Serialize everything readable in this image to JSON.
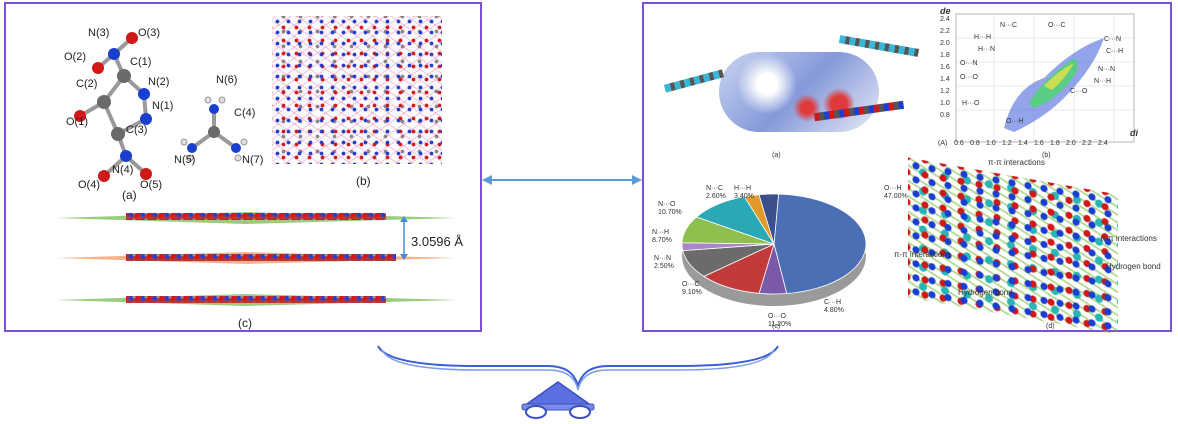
{
  "left": {
    "atoms_a": [
      "N(3)",
      "O(3)",
      "O(2)",
      "C(1)",
      "N(2)",
      "C(2)",
      "N(1)",
      "O(1)",
      "C(3)",
      "N(4)",
      "O(4)",
      "O(5)"
    ],
    "atoms_cation": [
      "N(6)",
      "C(4)",
      "N(5)",
      "N(7)"
    ],
    "label_a": "(a)",
    "label_b": "(b)",
    "label_c": "(c)",
    "spacing": "3.0596 Å"
  },
  "right": {
    "label_a": "(a)",
    "label_b": "(b)",
    "label_c": "(c)",
    "label_d": "(d)",
    "fingerprint": {
      "axis_de": "de",
      "axis_di": "di",
      "unit": "(A)",
      "y_ticks": [
        "2.4",
        "2.2",
        "2.0",
        "1.8",
        "1.6",
        "1.4",
        "1.2",
        "1.0",
        "0.8"
      ],
      "x_ticks": [
        "0.6",
        "0.8",
        "1.0",
        "1.2",
        "1.4",
        "1.6",
        "1.8",
        "2.0",
        "2.2",
        "2.4"
      ],
      "contacts": [
        "N···C",
        "O···C",
        "H···H",
        "C···N",
        "H···N",
        "C···H",
        "O···N",
        "N···N",
        "O···O",
        "N···H",
        "C···O",
        "H···O",
        "O···H"
      ]
    },
    "interactions": [
      "π-π interactions",
      "π-π interactions",
      "π-π interactions",
      "Hydrogen bond",
      "Hydrogen bond"
    ]
  },
  "chart_data": {
    "type": "pie",
    "labels": [
      "O···H",
      "C···H",
      "O···O",
      "O···C",
      "N···N",
      "N···H",
      "N···O",
      "N···C",
      "H···H"
    ],
    "label_values": [
      "47.00%",
      "4.80%",
      "11.20%",
      "9.10%",
      "2.50%",
      "8.70%",
      "10.70%",
      "2.60%",
      "3.40%"
    ],
    "values": [
      47.0,
      4.8,
      11.2,
      9.1,
      2.5,
      8.7,
      10.7,
      2.6,
      3.4
    ],
    "colors": [
      "#4a6fb5",
      "#7a5aa8",
      "#c23a3a",
      "#6b6b6b",
      "#a986c4",
      "#8fbf4f",
      "#2aa8b5",
      "#e09a2a",
      "#3a4f8c"
    ]
  }
}
